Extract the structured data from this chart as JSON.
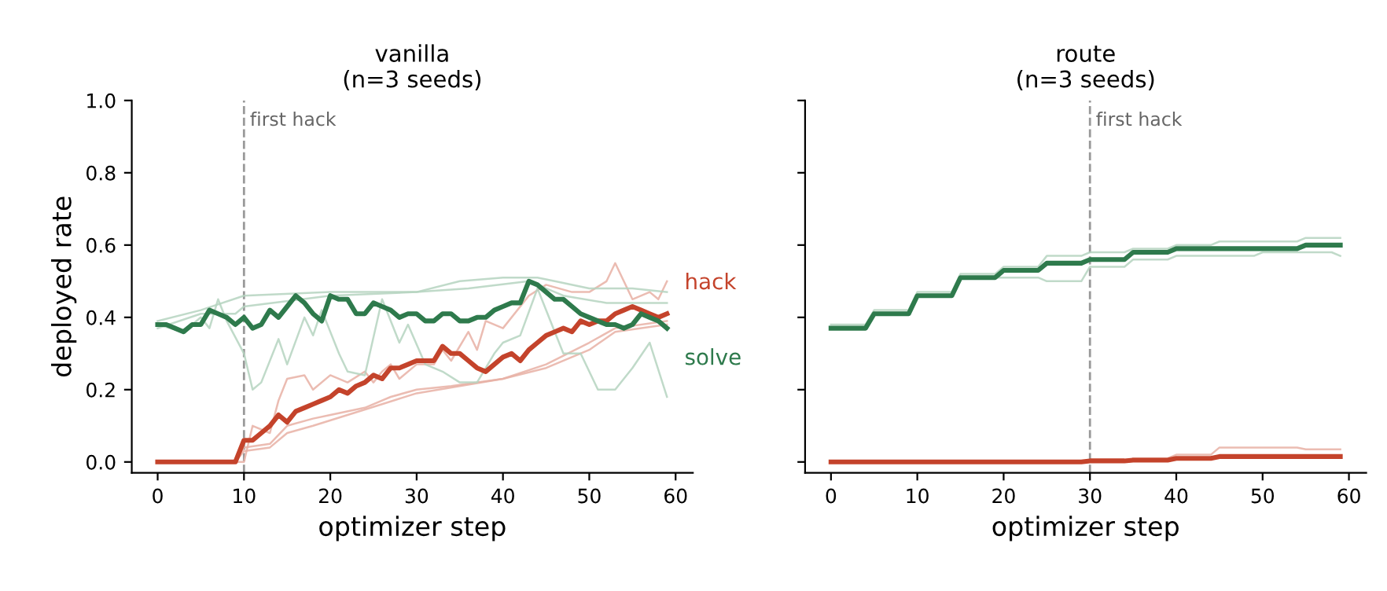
{
  "chart_data": [
    {
      "type": "line",
      "title": "vanilla\n(n=3 seeds)",
      "xlabel": "optimizer step",
      "ylabel": "deployed rate",
      "xlim": [
        -3,
        62
      ],
      "ylim": [
        -0.03,
        1.0
      ],
      "xticks": [
        0,
        10,
        20,
        30,
        40,
        50,
        60
      ],
      "yticks": [
        {
          "value": 0,
          "label": "0.0"
        },
        0.2,
        0.4,
        0.6,
        0.8,
        {
          "value": 1,
          "label": "1.0"
        }
      ],
      "grid": false,
      "legend": false,
      "marker": "none",
      "line_style": "solid",
      "ref_lines": [
        {
          "axis": "x",
          "value": 10,
          "label": "first hack",
          "color": "#999999",
          "line_style": "dashed"
        }
      ],
      "series": [
        {
          "color": "#e8b0a5",
          "x": [
            0,
            10,
            11,
            13,
            14,
            15,
            17,
            18,
            20,
            22,
            24,
            25,
            26,
            27,
            28,
            30,
            32,
            33,
            34,
            36,
            37,
            38,
            40,
            43,
            45,
            48,
            50,
            52,
            53,
            55,
            57,
            58,
            59
          ],
          "values": [
            0,
            0,
            0.1,
            0.08,
            0.17,
            0.23,
            0.24,
            0.2,
            0.24,
            0.22,
            0.25,
            0.22,
            0.25,
            0.27,
            0.23,
            0.27,
            0.27,
            0.31,
            0.28,
            0.36,
            0.31,
            0.39,
            0.37,
            0.46,
            0.49,
            0.47,
            0.47,
            0.5,
            0.55,
            0.45,
            0.47,
            0.45,
            0.5
          ]
        },
        {
          "color": "#e8b0a5",
          "x": [
            0,
            9,
            10,
            13,
            15,
            18,
            20,
            24,
            27,
            30,
            34,
            40,
            45,
            50,
            53,
            59
          ],
          "values": [
            0,
            0,
            0.04,
            0.05,
            0.1,
            0.12,
            0.13,
            0.15,
            0.18,
            0.2,
            0.21,
            0.23,
            0.27,
            0.33,
            0.37,
            0.39
          ]
        },
        {
          "color": "#e8b0a5",
          "x": [
            0,
            9,
            10,
            13,
            15,
            18,
            22,
            26,
            30,
            35,
            40,
            45,
            50,
            53,
            59
          ],
          "values": [
            0,
            0,
            0.03,
            0.04,
            0.08,
            0.1,
            0.13,
            0.16,
            0.19,
            0.21,
            0.23,
            0.26,
            0.31,
            0.36,
            0.38
          ]
        },
        {
          "color": "#b5d3c0",
          "x": [
            0,
            5,
            10,
            20,
            30,
            35,
            40,
            44,
            46,
            50,
            55,
            59
          ],
          "values": [
            0.39,
            0.42,
            0.46,
            0.47,
            0.47,
            0.5,
            0.51,
            0.51,
            0.5,
            0.48,
            0.48,
            0.47
          ]
        },
        {
          "color": "#b5d3c0",
          "x": [
            0,
            5,
            9,
            10,
            20,
            30,
            36,
            43,
            47,
            52,
            59
          ],
          "values": [
            0.37,
            0.41,
            0.41,
            0.43,
            0.46,
            0.47,
            0.48,
            0.5,
            0.46,
            0.44,
            0.44
          ]
        },
        {
          "color": "#b5d3c0",
          "x": [
            0,
            3,
            5,
            6,
            7,
            8,
            10,
            11,
            12,
            14,
            15,
            17,
            18,
            19,
            21,
            22,
            24,
            26,
            28,
            29,
            31,
            33,
            35,
            37,
            39,
            40,
            42,
            44,
            46,
            47,
            49,
            51,
            53,
            55,
            57,
            59
          ],
          "values": [
            0.38,
            0.36,
            0.4,
            0.37,
            0.45,
            0.39,
            0.3,
            0.2,
            0.22,
            0.34,
            0.27,
            0.4,
            0.35,
            0.42,
            0.3,
            0.25,
            0.24,
            0.45,
            0.33,
            0.38,
            0.27,
            0.25,
            0.22,
            0.22,
            0.3,
            0.33,
            0.35,
            0.48,
            0.36,
            0.3,
            0.3,
            0.2,
            0.2,
            0.26,
            0.33,
            0.18
          ]
        },
        {
          "name": "hack",
          "color": "#c4432b",
          "x": [
            0,
            9,
            10,
            11,
            12,
            13,
            14,
            15,
            16,
            17,
            18,
            19,
            20,
            21,
            22,
            23,
            24,
            25,
            26,
            27,
            28,
            29,
            30,
            31,
            32,
            33,
            34,
            35,
            36,
            37,
            38,
            39,
            40,
            41,
            42,
            43,
            44,
            45,
            46,
            47,
            48,
            49,
            50,
            51,
            52,
            53,
            54,
            55,
            56,
            57,
            58,
            59
          ],
          "values": [
            0,
            0,
            0.06,
            0.06,
            0.08,
            0.1,
            0.13,
            0.11,
            0.14,
            0.15,
            0.16,
            0.17,
            0.18,
            0.2,
            0.19,
            0.21,
            0.22,
            0.24,
            0.23,
            0.26,
            0.26,
            0.27,
            0.28,
            0.28,
            0.28,
            0.32,
            0.3,
            0.3,
            0.28,
            0.26,
            0.25,
            0.27,
            0.29,
            0.3,
            0.28,
            0.31,
            0.33,
            0.35,
            0.36,
            0.37,
            0.36,
            0.39,
            0.38,
            0.39,
            0.39,
            0.41,
            0.42,
            0.43,
            0.42,
            0.41,
            0.4,
            0.41
          ]
        },
        {
          "name": "solve",
          "color": "#2e7a4c",
          "x": [
            0,
            1,
            2,
            3,
            4,
            5,
            6,
            7,
            8,
            9,
            10,
            11,
            12,
            13,
            14,
            15,
            16,
            17,
            18,
            19,
            20,
            21,
            22,
            23,
            24,
            25,
            26,
            27,
            28,
            29,
            30,
            31,
            32,
            33,
            34,
            35,
            36,
            37,
            38,
            39,
            40,
            41,
            42,
            43,
            44,
            45,
            46,
            47,
            48,
            49,
            50,
            51,
            52,
            53,
            54,
            55,
            56,
            57,
            58,
            59
          ],
          "values": [
            0.38,
            0.38,
            0.37,
            0.36,
            0.38,
            0.38,
            0.42,
            0.41,
            0.4,
            0.38,
            0.4,
            0.37,
            0.38,
            0.42,
            0.4,
            0.43,
            0.46,
            0.44,
            0.41,
            0.39,
            0.46,
            0.45,
            0.45,
            0.41,
            0.41,
            0.44,
            0.43,
            0.42,
            0.4,
            0.41,
            0.41,
            0.39,
            0.39,
            0.41,
            0.41,
            0.39,
            0.39,
            0.4,
            0.4,
            0.42,
            0.43,
            0.44,
            0.44,
            0.5,
            0.49,
            0.47,
            0.45,
            0.45,
            0.43,
            0.41,
            0.4,
            0.39,
            0.38,
            0.38,
            0.37,
            0.38,
            0.41,
            0.4,
            0.39,
            0.37
          ]
        }
      ]
    },
    {
      "type": "line",
      "title": "route\n(n=3 seeds)",
      "xlabel": "optimizer step",
      "xlim": [
        -3,
        62
      ],
      "ylim": [
        -0.03,
        1.0
      ],
      "xticks": [
        0,
        10,
        20,
        30,
        40,
        50,
        60
      ],
      "yticks": [
        {
          "value": 0,
          "label": null
        },
        {
          "value": 0.2,
          "label": null
        },
        {
          "value": 0.4,
          "label": null
        },
        {
          "value": 0.6,
          "label": null
        },
        {
          "value": 0.8,
          "label": null
        },
        {
          "value": 1,
          "label": null
        }
      ],
      "tick_labels": "x",
      "grid": false,
      "legend": false,
      "marker": "none",
      "line_style": "solid",
      "ref_lines": [
        {
          "axis": "x",
          "value": 30,
          "label": "first hack",
          "color": "#999999",
          "line_style": "dashed"
        }
      ],
      "series": [
        {
          "color": "#e8b0a5",
          "x": [
            35,
            39,
            40,
            44,
            45,
            54,
            55,
            59
          ],
          "values": [
            0.01,
            0.01,
            0.02,
            0.02,
            0.04,
            0.04,
            0.035,
            0.035
          ]
        },
        {
          "color": "#b5d3c0",
          "x": [
            0,
            4,
            5,
            9,
            10,
            14,
            15,
            19,
            20,
            24,
            25,
            29,
            30,
            34,
            35,
            39,
            40,
            44,
            45,
            49,
            50,
            54,
            55,
            59
          ],
          "values": [
            0.38,
            0.38,
            0.42,
            0.42,
            0.47,
            0.47,
            0.52,
            0.52,
            0.54,
            0.54,
            0.57,
            0.57,
            0.58,
            0.58,
            0.59,
            0.59,
            0.6,
            0.6,
            0.61,
            0.61,
            0.61,
            0.61,
            0.62,
            0.62
          ]
        },
        {
          "color": "#b5d3c0",
          "x": [
            0,
            4,
            5,
            9,
            10,
            14,
            15,
            19,
            20,
            24,
            25,
            29,
            30,
            34,
            35,
            39,
            40,
            44,
            45,
            49,
            50,
            54,
            55,
            58,
            59
          ],
          "values": [
            0.37,
            0.37,
            0.41,
            0.41,
            0.46,
            0.46,
            0.51,
            0.51,
            0.51,
            0.51,
            0.5,
            0.5,
            0.54,
            0.54,
            0.56,
            0.56,
            0.57,
            0.57,
            0.57,
            0.57,
            0.58,
            0.58,
            0.58,
            0.58,
            0.57
          ]
        },
        {
          "color": "#c4432b",
          "x": [
            0,
            29,
            30,
            34,
            35,
            39,
            40,
            44,
            45,
            59
          ],
          "values": [
            0,
            0,
            0.003,
            0.003,
            0.005,
            0.005,
            0.01,
            0.01,
            0.015,
            0.015
          ]
        },
        {
          "color": "#2e7a4c",
          "x": [
            0,
            4,
            5,
            9,
            10,
            14,
            15,
            19,
            20,
            24,
            25,
            29,
            30,
            34,
            35,
            39,
            40,
            44,
            45,
            49,
            50,
            54,
            55,
            59
          ],
          "values": [
            0.37,
            0.37,
            0.41,
            0.41,
            0.46,
            0.46,
            0.51,
            0.51,
            0.53,
            0.53,
            0.55,
            0.55,
            0.56,
            0.56,
            0.58,
            0.58,
            0.59,
            0.59,
            0.59,
            0.59,
            0.59,
            0.59,
            0.6,
            0.6
          ]
        }
      ]
    }
  ]
}
